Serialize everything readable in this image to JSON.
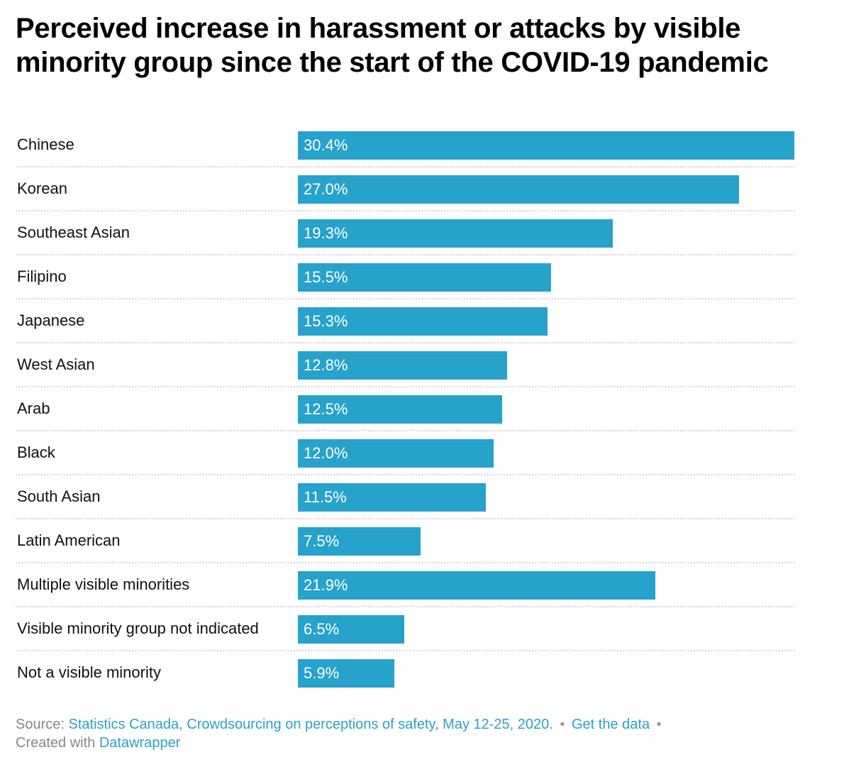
{
  "title": "Perceived increase in harassment or attacks by visible minority group since the start of the COVID-19 pandemic",
  "colors": {
    "bar": "#27a2cb",
    "link": "#2f9fc9",
    "footer_text": "#888888"
  },
  "chart_data": {
    "type": "bar",
    "orientation": "horizontal",
    "title": "Perceived increase in harassment or attacks by visible minority group since the start of the COVID-19 pandemic",
    "categories": [
      "Chinese",
      "Korean",
      "Southeast Asian",
      "Filipino",
      "Japanese",
      "West Asian",
      "Arab",
      "Black",
      "South Asian",
      "Latin American",
      "Multiple visible minorities",
      "Visible minority group not indicated",
      "Not a visible minority"
    ],
    "values": [
      30.4,
      27.0,
      19.3,
      15.5,
      15.3,
      12.8,
      12.5,
      12.0,
      11.5,
      7.5,
      21.9,
      6.5,
      5.9
    ],
    "value_labels": [
      "30.4%",
      "27.0%",
      "19.3%",
      "15.5%",
      "15.3%",
      "12.8%",
      "12.5%",
      "12.0%",
      "11.5%",
      "7.5%",
      "21.9%",
      "6.5%",
      "5.9%"
    ],
    "unit": "%",
    "xlim": [
      0,
      30.4
    ],
    "grid": false,
    "legend": "none"
  },
  "footer": {
    "source_label": "Source:",
    "source_text": "Statistics Canada, Crowdsourcing on perceptions of safety, May 12-25, 2020.",
    "separator": "•",
    "get_data": "Get the data",
    "created_label": "Created with",
    "created_tool": "Datawrapper"
  }
}
